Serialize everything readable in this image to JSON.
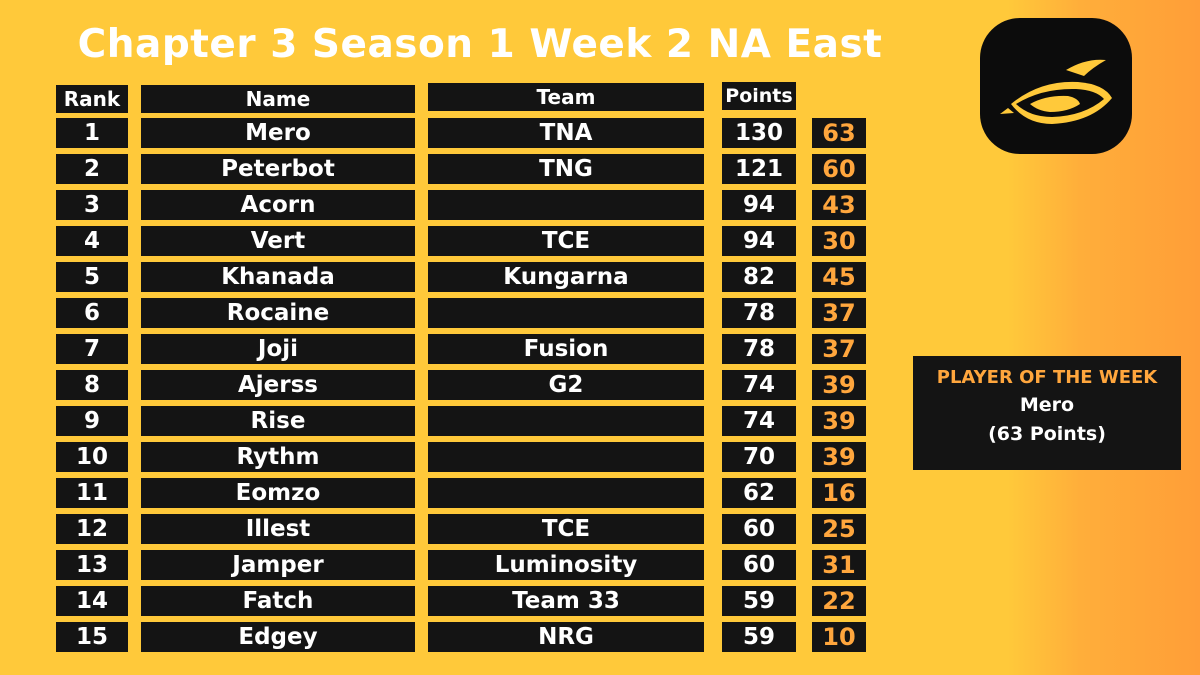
{
  "title": "Chapter 3 Season 1 Week 2 NA East",
  "headers": {
    "rank": "Rank",
    "name": "Name",
    "team": "Team",
    "points": "Points"
  },
  "rows": [
    {
      "rank": "1",
      "name": "Mero",
      "team": "TNA",
      "points": "130",
      "week": "63"
    },
    {
      "rank": "2",
      "name": "Peterbot",
      "team": "TNG",
      "points": "121",
      "week": "60"
    },
    {
      "rank": "3",
      "name": "Acorn",
      "team": "",
      "points": "94",
      "week": "43"
    },
    {
      "rank": "4",
      "name": "Vert",
      "team": "TCE",
      "points": "94",
      "week": "30"
    },
    {
      "rank": "5",
      "name": "Khanada",
      "team": "Kungarna",
      "points": "82",
      "week": "45"
    },
    {
      "rank": "6",
      "name": "Rocaine",
      "team": "",
      "points": "78",
      "week": "37"
    },
    {
      "rank": "7",
      "name": "Joji",
      "team": "Fusion",
      "points": "78",
      "week": "37"
    },
    {
      "rank": "8",
      "name": "Ajerss",
      "team": "G2",
      "points": "74",
      "week": "39"
    },
    {
      "rank": "9",
      "name": "Rise",
      "team": "",
      "points": "74",
      "week": "39"
    },
    {
      "rank": "10",
      "name": "Rythm",
      "team": "",
      "points": "70",
      "week": "39"
    },
    {
      "rank": "11",
      "name": "Eomzo",
      "team": "",
      "points": "62",
      "week": "16"
    },
    {
      "rank": "12",
      "name": "Illest",
      "team": "TCE",
      "points": "60",
      "week": "25"
    },
    {
      "rank": "13",
      "name": "Jamper",
      "team": "Luminosity",
      "points": "60",
      "week": "31"
    },
    {
      "rank": "14",
      "name": "Fatch",
      "team": "Team 33",
      "points": "59",
      "week": "22"
    },
    {
      "rank": "15",
      "name": "Edgey",
      "team": "NRG",
      "points": "59",
      "week": "10"
    }
  ],
  "player_of_week": {
    "title": "PLAYER OF THE WEEK",
    "name": "Mero",
    "points": "(63 Points)"
  },
  "colors": {
    "background": "#FFC93A",
    "cell": "#141414",
    "accent": "#FFA63D",
    "text": "#ffffff"
  },
  "logo": {
    "icon": "eye-logo-icon"
  }
}
